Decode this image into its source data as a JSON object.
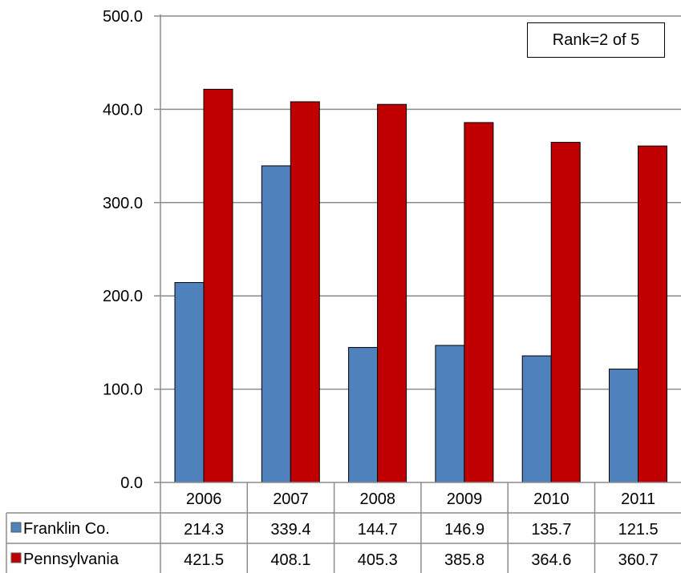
{
  "chart_data": {
    "type": "bar",
    "categories": [
      "2006",
      "2007",
      "2008",
      "2009",
      "2010",
      "2011"
    ],
    "series": [
      {
        "name": "Franklin Co.",
        "values": [
          214.3,
          339.4,
          144.7,
          146.9,
          135.7,
          121.5
        ],
        "color": "#4f81bd"
      },
      {
        "name": "Pennsylvania",
        "values": [
          421.5,
          408.1,
          405.3,
          385.8,
          364.6,
          360.7
        ],
        "color": "#c00000"
      }
    ],
    "ylim": [
      0,
      500
    ],
    "yticks": [
      "0.0",
      "100.0",
      "200.0",
      "300.0",
      "400.0",
      "500.0"
    ],
    "grid": true,
    "data_table": true,
    "table_values": [
      [
        "214.3",
        "339.4",
        "144.7",
        "146.9",
        "135.7",
        "121.5"
      ],
      [
        "421.5",
        "408.1",
        "405.3",
        "385.8",
        "364.6",
        "360.7"
      ]
    ],
    "annotation": "Rank=2 of 5"
  }
}
